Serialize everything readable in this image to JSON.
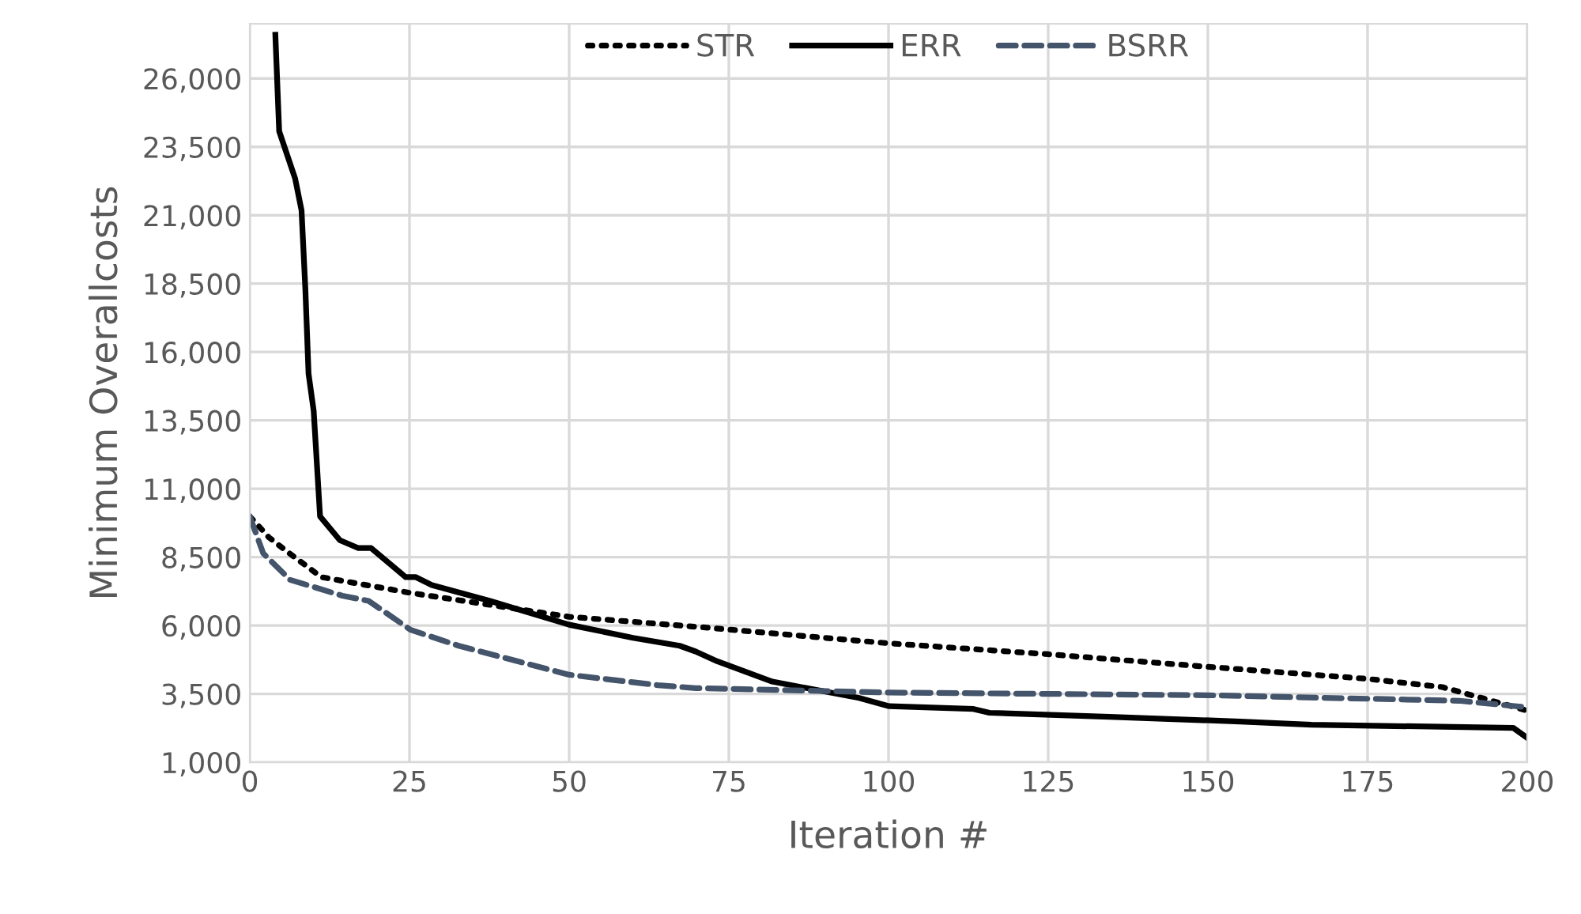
{
  "chart_data": {
    "type": "line",
    "xlabel": "Iteration #",
    "ylabel": "Minimum Overallcosts",
    "xlim": [
      0,
      200
    ],
    "xticks": [
      0,
      25,
      50,
      75,
      100,
      125,
      150,
      175,
      200
    ],
    "ylim": [
      1000,
      28000
    ],
    "yticks": [
      {
        "value": 1000,
        "label": "1,000"
      },
      {
        "value": 3500,
        "label": "3,500"
      },
      {
        "value": 6000,
        "label": "6,000"
      },
      {
        "value": 8500,
        "label": "8,500"
      },
      {
        "value": 11000,
        "label": "11,000"
      },
      {
        "value": 13500,
        "label": "13,500"
      },
      {
        "value": 16000,
        "label": "16,000"
      },
      {
        "value": 18500,
        "label": "18,500"
      },
      {
        "value": 21000,
        "label": "21,000"
      },
      {
        "value": 23500,
        "label": "23,500"
      },
      {
        "value": 26000,
        "label": "26,000"
      }
    ],
    "grid": true,
    "legend": "top",
    "marker": "none",
    "series": [
      {
        "name": "STR",
        "color": "#000000",
        "line_style": "dotted",
        "x": [
          0,
          3,
          6.2,
          11.2,
          25.2,
          50,
          70.6,
          100,
          125,
          150,
          175,
          186.7,
          200
        ],
        "values": [
          9990,
          9220,
          8640,
          7770,
          7190,
          6320,
          5940,
          5350,
          4950,
          4490,
          4050,
          3750,
          2890
        ]
      },
      {
        "name": "ERR",
        "color": "#000000",
        "line_style": "solid",
        "x": [
          4,
          4.6,
          7.1,
          8.1,
          8.7,
          9.2,
          10,
          11,
          14.1,
          17,
          19,
          24.4,
          26,
          28.5,
          37.6,
          50,
          60,
          67.3,
          69.8,
          73.2,
          81.8,
          95.4,
          100.1,
          113.3,
          115.8,
          134.6,
          155.1,
          166.2,
          197.8,
          200
        ],
        "values": [
          27600,
          24070,
          22340,
          21180,
          18290,
          15200,
          13850,
          9990,
          9120,
          8830,
          8830,
          7770,
          7770,
          7480,
          6900,
          6030,
          5550,
          5260,
          5050,
          4690,
          3950,
          3350,
          3050,
          2950,
          2810,
          2660,
          2490,
          2370,
          2260,
          1890
        ]
      },
      {
        "name": "BSRR",
        "color": "#44546a",
        "line_style": "dashed",
        "x": [
          0,
          2.1,
          6.3,
          14.5,
          18.6,
          25.2,
          32.7,
          50,
          63.9,
          69.8,
          100.1,
          150,
          189.3,
          200
        ],
        "values": [
          9990,
          8640,
          7670,
          7090,
          6900,
          5840,
          5260,
          4200,
          3820,
          3710,
          3550,
          3450,
          3250,
          3010
        ]
      }
    ]
  }
}
